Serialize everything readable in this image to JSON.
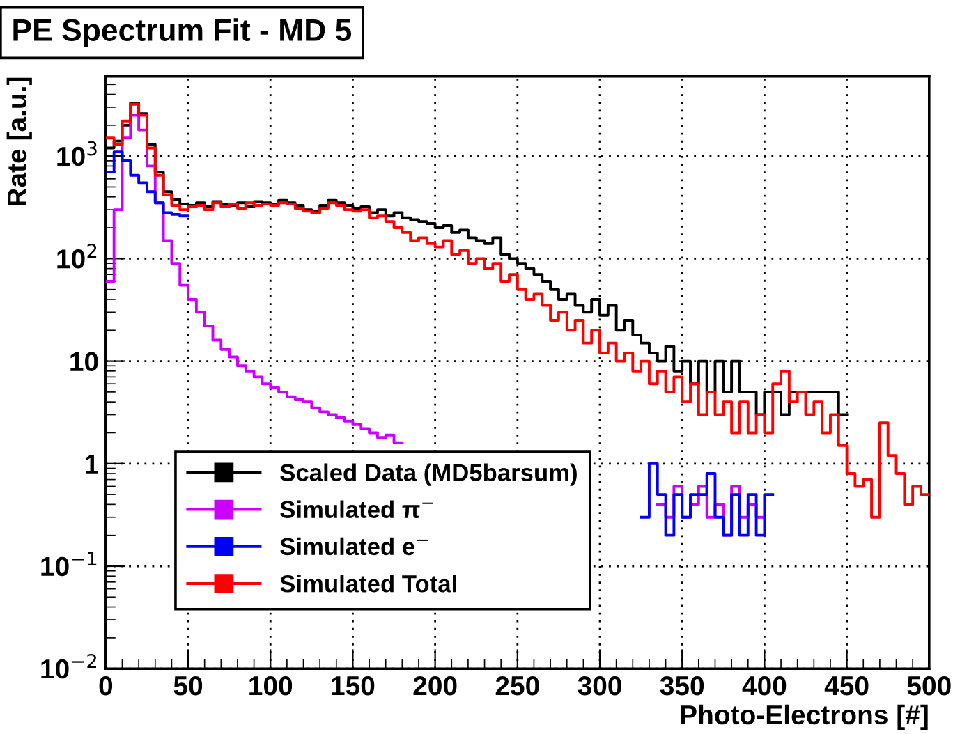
{
  "chart_data": {
    "type": "step",
    "title": "PE Spectrum Fit - MD 5",
    "xlabel": "Photo-Electrons [#]",
    "ylabel": "Rate [a.u.]",
    "log": "y",
    "grid": true,
    "legend": "bottom left",
    "marker": "none",
    "line_style": "solid",
    "xlim": [
      0,
      500
    ],
    "xticks": [
      0,
      50,
      100,
      150,
      200,
      250,
      300,
      350,
      400,
      450,
      500
    ],
    "ylim": [
      0.01,
      6000
    ],
    "yticks": [
      {
        "value": 0.01,
        "label": "10$^{−2}$"
      },
      {
        "value": 0.1,
        "label": "10$^{−1}$"
      },
      1,
      10,
      {
        "value": 100,
        "label": "10$^{2}$"
      },
      {
        "value": 1000,
        "label": "10$^{3}$"
      }
    ],
    "x": [
      2.5,
      7.5,
      12.5,
      17.5,
      22.5,
      27.5,
      32.5,
      37.5,
      42.5,
      47.5,
      52.5,
      57.5,
      62.5,
      67.5,
      72.5,
      77.5,
      82.5,
      87.5,
      92.5,
      97.5,
      102.5,
      107.5,
      112.5,
      117.5,
      122.5,
      127.5,
      132.5,
      137.5,
      142.5,
      147.5,
      152.5,
      157.5,
      162.5,
      167.5,
      172.5,
      177.5,
      182.5,
      187.5,
      192.5,
      197.5,
      202.5,
      207.5,
      212.5,
      217.5,
      222.5,
      227.5,
      232.5,
      237.5,
      242.5,
      247.5,
      252.5,
      257.5,
      262.5,
      267.5,
      272.5,
      277.5,
      282.5,
      287.5,
      292.5,
      297.5,
      302.5,
      307.5,
      312.5,
      317.5,
      322.5,
      327.5,
      332.5,
      337.5,
      342.5,
      347.5,
      352.5,
      357.5,
      362.5,
      367.5,
      372.5,
      377.5,
      382.5,
      387.5,
      392.5,
      397.5,
      402.5,
      407.5,
      412.5,
      417.5,
      422.5,
      427.5,
      432.5,
      437.5,
      442.5,
      447.5,
      452.5,
      457.5,
      462.5,
      467.5,
      472.5,
      477.5,
      482.5,
      487.5,
      492.5,
      497.5
    ],
    "series": [
      {
        "name": "Scaled Data (MD5barsum)",
        "color": "#000000",
        "values": [
          1200,
          1400,
          2000,
          3300,
          2600,
          1300,
          700,
          450,
          380,
          340,
          330,
          350,
          320,
          360,
          340,
          330,
          350,
          320,
          360,
          350,
          340,
          370,
          350,
          330,
          300,
          290,
          330,
          370,
          350,
          330,
          310,
          320,
          280,
          300,
          260,
          280,
          250,
          240,
          230,
          220,
          200,
          210,
          180,
          190,
          160,
          150,
          140,
          160,
          110,
          100,
          90,
          80,
          70,
          60,
          50,
          40,
          45,
          35,
          30,
          40,
          28,
          35,
          20,
          25,
          18,
          15,
          12,
          10,
          14,
          8,
          10,
          6,
          10,
          5,
          10,
          5,
          10,
          5,
          5,
          3,
          5,
          5,
          3,
          5,
          5,
          5,
          5,
          5,
          5,
          3,
          null,
          null,
          null,
          null,
          null,
          null,
          null,
          null,
          null,
          null
        ]
      },
      {
        "name": "Simulated π$^{−}$",
        "color": "#cc00ff",
        "values": [
          60,
          300,
          1500,
          2500,
          1800,
          800,
          350,
          150,
          90,
          55,
          40,
          30,
          22,
          16,
          13,
          11,
          9,
          8,
          7,
          6,
          5.5,
          5,
          4.5,
          4.2,
          4,
          3.5,
          3.2,
          3,
          2.8,
          2.6,
          2.4,
          2.2,
          2,
          1.8,
          1.9,
          1.6,
          null,
          null,
          null,
          null,
          null,
          null,
          null,
          null,
          null,
          null,
          null,
          null,
          null,
          null,
          null,
          null,
          null,
          null,
          null,
          null,
          null,
          null,
          null,
          null,
          null,
          null,
          null,
          null,
          null,
          null,
          null,
          0.4,
          0.3,
          0.6,
          0.3,
          0.4,
          0.6,
          0.3,
          0.4,
          0.2,
          0.6,
          0.3,
          0.4,
          0.3,
          null,
          null,
          null,
          null,
          null,
          null,
          null,
          null,
          null,
          null,
          null,
          null,
          null,
          null,
          null,
          null,
          null,
          null,
          null,
          null
        ]
      },
      {
        "name": "Simulated e$^{−}$",
        "color": "#0000ff",
        "values": [
          700,
          1100,
          900,
          650,
          550,
          450,
          350,
          280,
          270,
          260,
          null,
          null,
          null,
          null,
          null,
          null,
          null,
          null,
          null,
          null,
          null,
          null,
          null,
          null,
          null,
          null,
          null,
          null,
          null,
          null,
          null,
          null,
          null,
          null,
          null,
          null,
          null,
          null,
          null,
          null,
          null,
          null,
          null,
          null,
          null,
          null,
          null,
          null,
          null,
          null,
          null,
          null,
          null,
          null,
          null,
          null,
          null,
          null,
          null,
          null,
          null,
          null,
          null,
          null,
          null,
          0.3,
          1,
          0.5,
          0.2,
          0.5,
          0.3,
          0.5,
          0.5,
          0.8,
          0.3,
          0.2,
          0.5,
          0.2,
          0.5,
          0.2,
          0.5,
          null,
          null,
          null,
          null,
          null,
          null,
          null,
          null,
          null,
          null,
          null,
          null,
          null,
          null,
          null,
          null,
          null,
          null,
          null
        ]
      },
      {
        "name": "Simulated Total",
        "color": "#ff0000",
        "values": [
          1500,
          1300,
          2200,
          3200,
          2500,
          1200,
          650,
          420,
          330,
          300,
          320,
          330,
          300,
          350,
          320,
          340,
          310,
          350,
          330,
          340,
          330,
          350,
          340,
          310,
          290,
          280,
          310,
          350,
          330,
          300,
          290,
          300,
          250,
          260,
          230,
          200,
          180,
          150,
          160,
          140,
          130,
          150,
          110,
          120,
          90,
          100,
          80,
          90,
          60,
          70,
          50,
          40,
          45,
          35,
          25,
          30,
          20,
          25,
          15,
          20,
          12,
          15,
          10,
          12,
          8,
          10,
          6,
          8,
          5,
          7,
          4,
          6,
          3,
          5,
          3,
          4,
          2,
          4,
          2,
          3,
          2,
          6,
          8,
          4,
          5,
          3,
          4,
          2,
          3,
          1.5,
          0.8,
          0.6,
          0.7,
          0.3,
          2.5,
          1.2,
          0.8,
          0.4,
          0.6,
          0.5
        ]
      }
    ]
  }
}
